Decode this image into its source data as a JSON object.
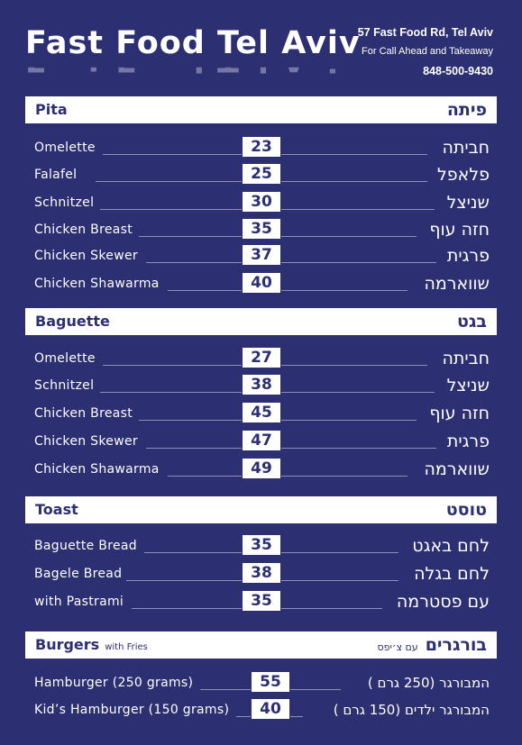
{
  "header": {
    "title": "Fast Food Tel Aviv",
    "address": "57 Fast Food Rd, Tel Aviv",
    "note": "For Call Ahead and Takeaway",
    "phone": "848-500-9430"
  },
  "sections": {
    "pita": {
      "en": "Pita",
      "he": "פיתה",
      "items": [
        {
          "en": "Omelette",
          "he": "חביתה",
          "price": "23"
        },
        {
          "en": "Falafel",
          "he": "פלאפל",
          "price": "25"
        },
        {
          "en": "Schnitzel",
          "he": "שניצל",
          "price": "30"
        },
        {
          "en": "Chicken Breast",
          "he": "חזה עוף",
          "price": "35"
        },
        {
          "en": "Chicken Skewer",
          "he": "פרגית",
          "price": "37"
        },
        {
          "en": "Chicken Shawarma",
          "he": "שווארמה",
          "price": "40"
        }
      ]
    },
    "baguette": {
      "en": "Baguette",
      "he": "בגט",
      "items": [
        {
          "en": "Omelette",
          "he": "חביתה",
          "price": "27"
        },
        {
          "en": "Schnitzel",
          "he": "שניצל",
          "price": "38"
        },
        {
          "en": "Chicken Breast",
          "he": "חזה עוף",
          "price": "45"
        },
        {
          "en": "Chicken Skewer",
          "he": "פרגית",
          "price": "47"
        },
        {
          "en": "Chicken Shawarma",
          "he": "שווארמה",
          "price": "49"
        }
      ]
    },
    "toast": {
      "en": "Toast",
      "he": "טוסט",
      "items": [
        {
          "en": "Baguette Bread",
          "he": "לחם באגט",
          "price": "35"
        },
        {
          "en": "Bagele Bread",
          "he": "לחם בגלה",
          "price": "38"
        },
        {
          "en": "with Pastrami",
          "he": "עם פסטרמה",
          "price": "35"
        }
      ]
    },
    "burgers": {
      "en": "Burgers",
      "en_sub": "with Fries",
      "he": "בורגרים",
      "he_sub": "עם צ׳יפס",
      "items": [
        {
          "en": "Hamburger (250 grams)",
          "he": "המבורגר (250 גרם )",
          "price": "55"
        },
        {
          "en": "Kid’s Hamburger (150 grams)",
          "he": "המבורגר ילדים (150 גרם )",
          "price": "40"
        }
      ]
    }
  },
  "colors": {
    "background": "#2d2f73",
    "foreground": "#ffffff"
  }
}
